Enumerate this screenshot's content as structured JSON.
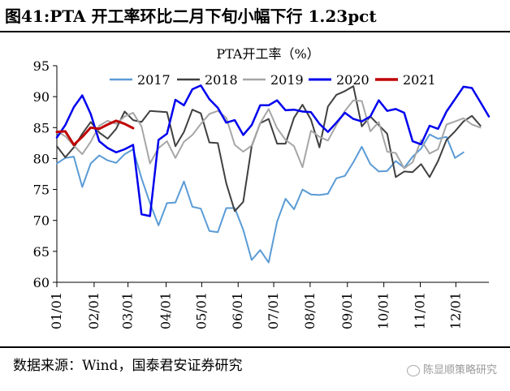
{
  "header": {
    "title": "图41:PTA 开工率环比二月下旬小幅下行 1.23pct"
  },
  "footer": {
    "source": "数据来源：Wind，国泰君安证券研究",
    "watermark": "陈显顺策略研究"
  },
  "chart_data": {
    "type": "line",
    "title": "PTA开工率（%）",
    "xlabel": "",
    "ylabel": "",
    "ylim": [
      60,
      95
    ],
    "y_ticks": [
      60,
      65,
      70,
      75,
      80,
      85,
      90,
      95
    ],
    "x_ticks": [
      "01/01",
      "02/01",
      "03/01",
      "04/01",
      "05/01",
      "06/01",
      "07/01",
      "08/01",
      "09/01",
      "10/01",
      "11/01",
      "12/01"
    ],
    "x_tick_weeks": [
      1,
      5.4,
      9.4,
      13.9,
      18.1,
      22.4,
      26.6,
      30.9,
      35.3,
      39.6,
      43.9,
      48.1
    ],
    "x_range_weeks": [
      1,
      52
    ],
    "grid": false,
    "legend_position": "top",
    "series": [
      {
        "name": "2017",
        "color": "#5b9bd5",
        "width": 2,
        "values": [
          79.2,
          80.1,
          80.3,
          75.4,
          79.2,
          80.5,
          79.7,
          79.3,
          80.7,
          81.5,
          76.8,
          72.8,
          69.2,
          72.8,
          72.9,
          76.3,
          72.2,
          71.9,
          68.3,
          68.1,
          72.0,
          72.0,
          68.5,
          63.6,
          65.2,
          63.2,
          69.8,
          73.5,
          71.8,
          75.0,
          74.2,
          74.1,
          74.3,
          76.8,
          77.2,
          79.4,
          81.9,
          79.1,
          77.9,
          78.0,
          79.6,
          78.5,
          80.3,
          81.6,
          83.9,
          83.2,
          83.5,
          80.1,
          81.0
        ]
      },
      {
        "name": "2018",
        "color": "#404040",
        "width": 2,
        "values": [
          82.0,
          80.2,
          81.8,
          84.0,
          85.9,
          84.2,
          83.2,
          84.8,
          87.6,
          86.2,
          85.9,
          87.7,
          87.6,
          87.5,
          82.0,
          84.3,
          87.9,
          87.3,
          82.6,
          82.5,
          76.0,
          71.5,
          73.0,
          82.0,
          85.7,
          86.4,
          82.4,
          82.4,
          86.6,
          88.7,
          86.3,
          81.8,
          88.4,
          90.3,
          90.9,
          91.7,
          85.2,
          86.8,
          85.4,
          84.0,
          77.0,
          77.9,
          77.8,
          79.1,
          77.0,
          79.6,
          83.0,
          84.4,
          86.0,
          86.9,
          85.3
        ]
      },
      {
        "name": "2019",
        "color": "#a6a6a6",
        "width": 2,
        "values": [
          84.4,
          83.6,
          82.1,
          80.7,
          82.7,
          85.3,
          86.1,
          85.6,
          86.8,
          87.4,
          85.2,
          79.2,
          81.7,
          82.8,
          80.1,
          82.7,
          83.8,
          85.6,
          87.2,
          87.7,
          86.6,
          82.2,
          81.1,
          82.1,
          85.7,
          88.0,
          84.9,
          83.0,
          82.0,
          78.6,
          84.5,
          83.5,
          82.9,
          85.4,
          87.7,
          89.4,
          89.3,
          84.4,
          85.9,
          81.1,
          80.9,
          78.4,
          79.4,
          83.0,
          80.8,
          81.5,
          85.5,
          86.0,
          86.5,
          85.5,
          85.0
        ]
      },
      {
        "name": "2020",
        "color": "#0000ee",
        "width": 2.5,
        "values": [
          83.4,
          85.4,
          88.3,
          90.2,
          87.2,
          82.8,
          81.7,
          81.0,
          81.5,
          82.2,
          71.0,
          70.7,
          83.0,
          84.0,
          89.5,
          88.6,
          91.2,
          91.8,
          89.6,
          88.2,
          85.8,
          86.2,
          83.8,
          85.4,
          88.6,
          88.6,
          89.4,
          87.8,
          87.9,
          87.6,
          87.5,
          85.6,
          84.3,
          85.8,
          87.4,
          86.4,
          86.0,
          86.8,
          89.4,
          87.7,
          88.0,
          87.4,
          82.8,
          82.3,
          85.3,
          84.8,
          87.6,
          89.6,
          91.6,
          91.4,
          89.1,
          86.8
        ]
      },
      {
        "name": "2021",
        "color": "#c00000",
        "width": 3,
        "values": [
          84.3,
          84.4,
          82.2,
          83.5,
          85.0,
          84.8,
          85.5,
          86.1,
          85.6,
          84.9
        ]
      }
    ]
  }
}
